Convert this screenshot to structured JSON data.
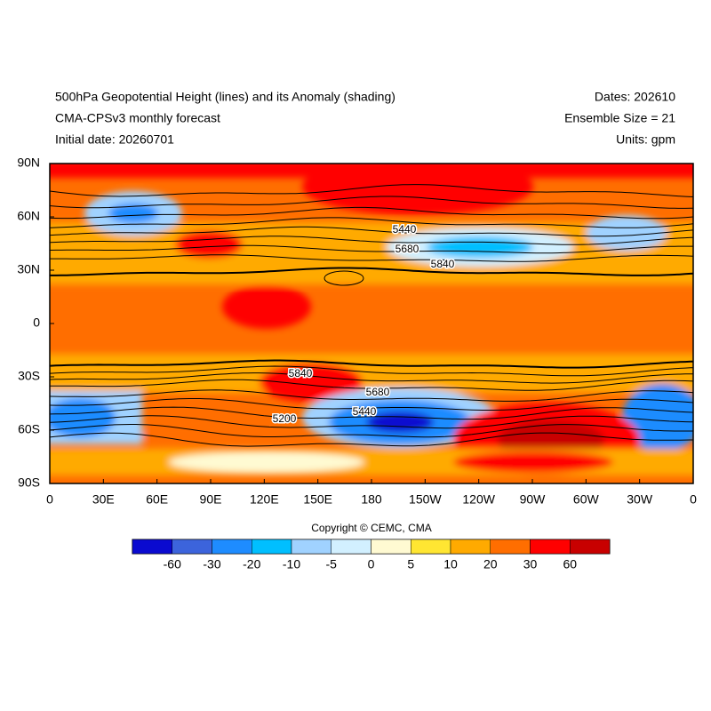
{
  "header": {
    "title": "500hPa Geopotential Height (lines) and its Anomaly (shading)",
    "subtitle": "CMA-CPSv3 monthly forecast",
    "initial_date": "Initial date: 20260701",
    "dates": "Dates: 202610",
    "ensemble": "Ensemble Size = 21",
    "units": "Units: gpm"
  },
  "map": {
    "x_labels": [
      "0",
      "30E",
      "60E",
      "90E",
      "120E",
      "150E",
      "180",
      "150W",
      "120W",
      "90W",
      "60W",
      "30W",
      "0"
    ],
    "y_labels": [
      "90N",
      "60N",
      "30N",
      "0",
      "30S",
      "60S",
      "90S"
    ],
    "contour_labels": [
      5440,
      5680,
      5840,
      5840,
      5680,
      5440,
      5200
    ]
  },
  "colorbar": {
    "colors": [
      "#0a0ad0",
      "#3c64dc",
      "#1e8cff",
      "#00bfff",
      "#a0d2ff",
      "#d2f0ff",
      "#fffad2",
      "#ffe632",
      "#ffaa00",
      "#ff6e00",
      "#ff0000",
      "#c80000"
    ],
    "labels": [
      -60,
      -30,
      -20,
      -10,
      -5,
      0,
      5,
      10,
      20,
      30,
      60
    ]
  },
  "copyright": "Copyright © CEMC, CMA"
}
